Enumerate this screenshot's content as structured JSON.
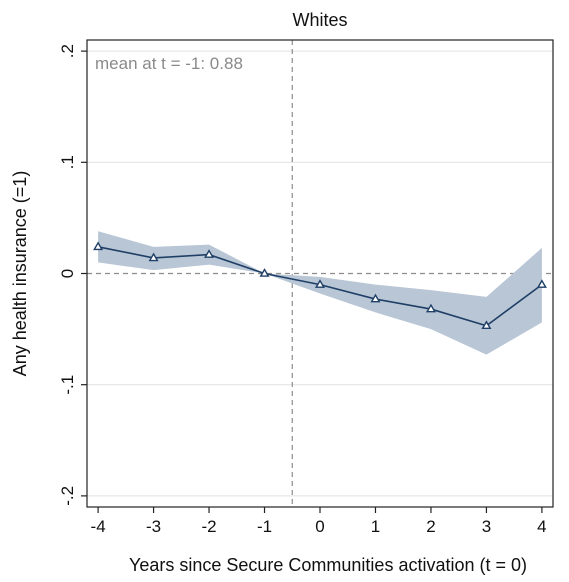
{
  "chart_data": {
    "type": "line",
    "title": "Whites",
    "xlabel": "Years since Secure Communities activation (t = 0)",
    "ylabel": "Any health insurance (=1)",
    "x": [
      -4,
      -3,
      -2,
      -1,
      0,
      1,
      2,
      3,
      4
    ],
    "series": [
      {
        "values": [
          0.024,
          0.014,
          0.017,
          0.0,
          -0.01,
          -0.023,
          -0.032,
          -0.047,
          -0.01
        ],
        "ci_lower": [
          0.01,
          0.003,
          0.008,
          0.0,
          -0.018,
          -0.035,
          -0.05,
          -0.073,
          -0.044
        ],
        "ci_upper": [
          0.038,
          0.024,
          0.026,
          0.0,
          -0.003,
          -0.01,
          -0.015,
          -0.021,
          0.023
        ],
        "color": "#1f3f66",
        "band_color": "#b9c6d5",
        "marker": "triangle-hollow"
      }
    ],
    "xlim": [
      -4.2,
      4.2
    ],
    "ylim": [
      -0.21,
      0.21
    ],
    "xticks": [
      -4,
      -3,
      -2,
      -1,
      0,
      1,
      2,
      3,
      4
    ],
    "xtick_labels": [
      "-4",
      "-3",
      "-2",
      "-1",
      "0",
      "1",
      "2",
      "3",
      "4"
    ],
    "yticks": [
      -0.2,
      -0.1,
      0,
      0.1,
      0.2
    ],
    "ytick_labels": [
      "-.2",
      "-.1",
      "0",
      ".1",
      ".2"
    ],
    "reference_lines": {
      "horizontal_y": 0,
      "vertical_x": -0.5
    },
    "annotation": "mean at t = -1: 0.88",
    "grid": true,
    "grid_color": "#e2e2e2"
  }
}
